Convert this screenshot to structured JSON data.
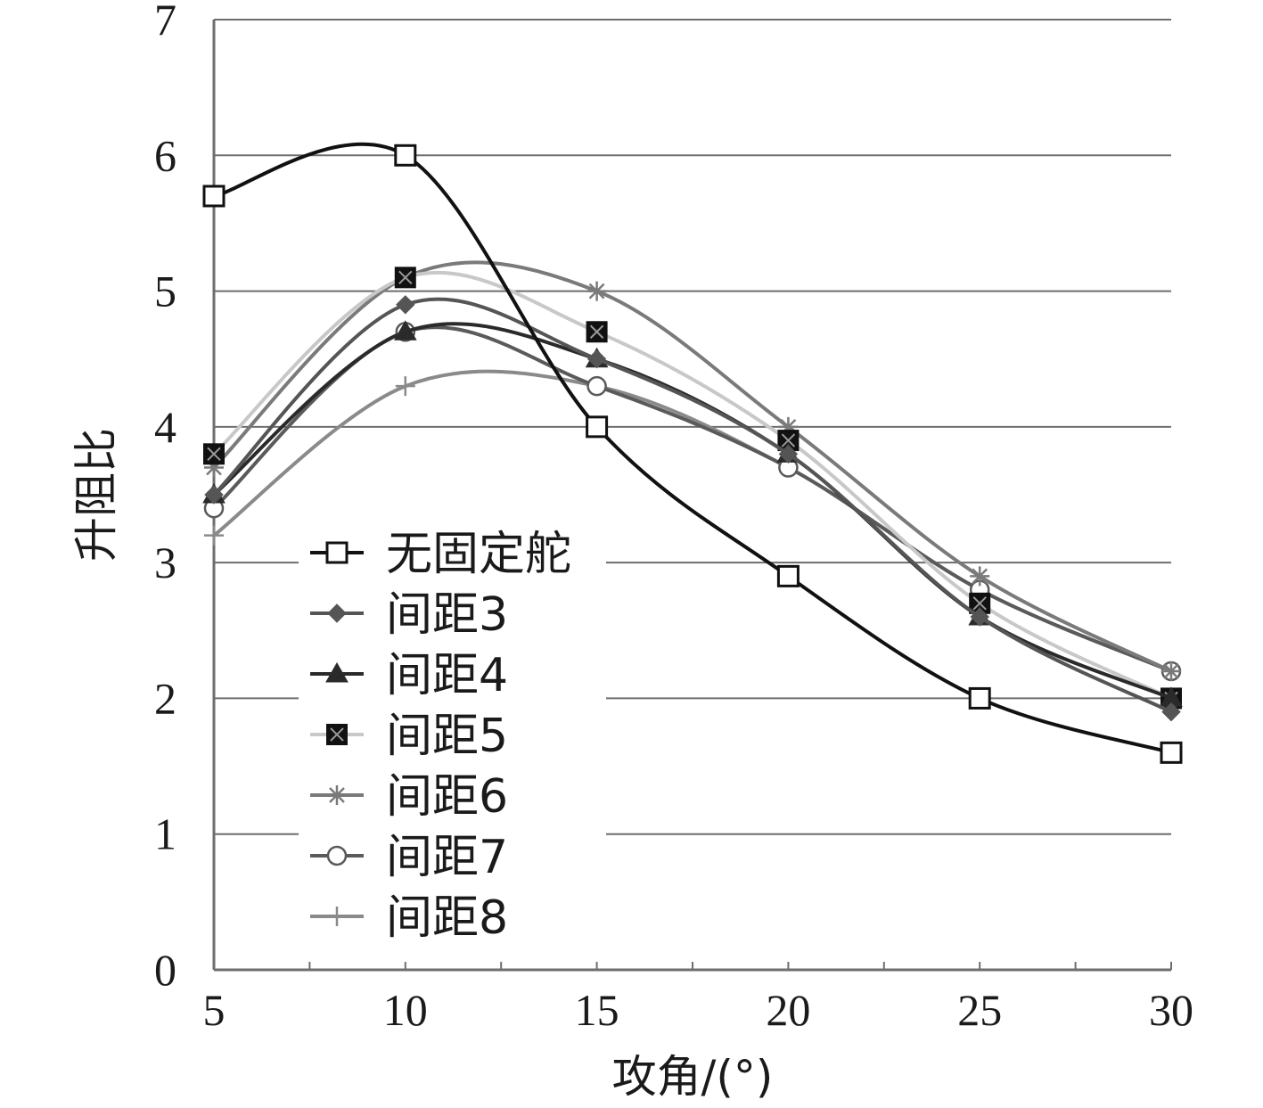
{
  "chart_data": {
    "type": "line",
    "title": "",
    "xlabel": "攻角/(°)",
    "ylabel": "升阻比",
    "x": [
      5,
      10,
      15,
      20,
      25,
      30
    ],
    "xlim": [
      5,
      30
    ],
    "ylim": [
      0,
      7
    ],
    "xticks": [
      "5",
      "10",
      "15",
      "20",
      "25",
      "30"
    ],
    "yticks": [
      "0",
      "1",
      "2",
      "3",
      "4",
      "5",
      "6",
      "7"
    ],
    "grid": "horizontal",
    "legend_position": "lower-left",
    "series": [
      {
        "name": "无固定舵",
        "values": [
          5.7,
          6.0,
          4.0,
          2.9,
          2.0,
          1.6
        ],
        "color": "#111111",
        "marker": "open-square"
      },
      {
        "name": "间距3",
        "values": [
          3.5,
          4.9,
          4.5,
          3.8,
          2.6,
          1.9
        ],
        "color": "#555555",
        "marker": "diamond"
      },
      {
        "name": "间距4",
        "values": [
          3.5,
          4.7,
          4.5,
          3.8,
          2.6,
          2.0
        ],
        "color": "#2a2a2a",
        "marker": "triangle"
      },
      {
        "name": "间距5",
        "values": [
          3.8,
          5.1,
          4.7,
          3.9,
          2.7,
          2.0
        ],
        "color": "#c8c8c8",
        "marker": "filled-square-x"
      },
      {
        "name": "间距6",
        "values": [
          3.7,
          5.1,
          5.0,
          4.0,
          2.9,
          2.2
        ],
        "color": "#7a7a7a",
        "marker": "star"
      },
      {
        "name": "间距7",
        "values": [
          3.4,
          4.7,
          4.3,
          3.7,
          2.8,
          2.2
        ],
        "color": "#5a5a5a",
        "marker": "circle"
      },
      {
        "name": "间距8",
        "values": [
          3.2,
          4.3,
          4.3,
          3.7,
          2.8,
          2.2
        ],
        "color": "#8a8a8a",
        "marker": "plus"
      }
    ]
  }
}
